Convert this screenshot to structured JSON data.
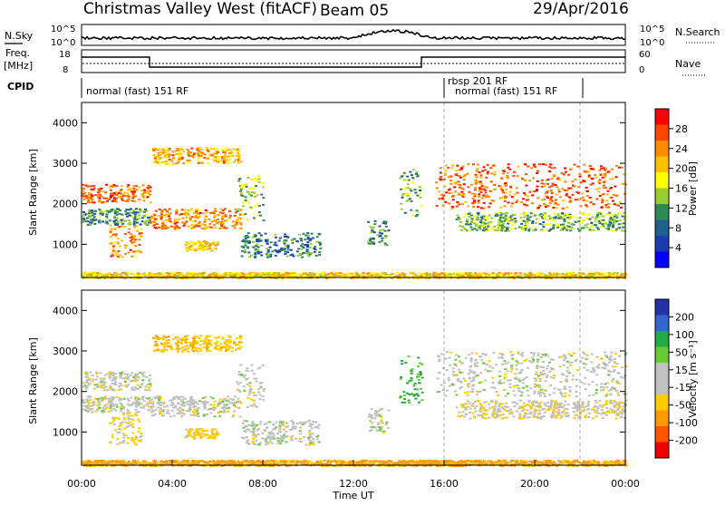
{
  "header": {
    "station": "Christmas Valley West (fitACF)",
    "beam": "Beam 05",
    "date": "29/Apr/2016"
  },
  "top_panels": {
    "nsky_label": "N.Sky",
    "nsky_ticks": [
      "10^5",
      "10^0"
    ],
    "nsearch_label": "N.Search",
    "nsearch_ticks": [
      "10^5",
      "10^0"
    ],
    "freq_label": "Freq.",
    "freq_unit": "[MHz]",
    "freq_ticks": [
      "18",
      "8"
    ],
    "nave_label": "Nave",
    "nave_ticks": [
      "60",
      "0"
    ],
    "cpid_label": "CPID",
    "cpid_segments": [
      "normal (fast) 151 RF",
      "rbsp 201 RF",
      "normal (fast) 151 RF"
    ]
  },
  "axes": {
    "ylabel": "Slant Range [km]",
    "xlabel": "Time UT",
    "y_ticks": [
      "4000",
      "3000",
      "2000",
      "1000"
    ],
    "x_ticks": [
      "00:00",
      "04:00",
      "08:00",
      "12:00",
      "16:00",
      "20:00",
      "00:00"
    ]
  },
  "power_colorbar": {
    "label": "Power [dB]",
    "ticks": [
      "28",
      "24",
      "20",
      "16",
      "12",
      "8",
      "4"
    ],
    "colors": [
      "#ff0000",
      "#ff4500",
      "#ff8c00",
      "#ffc000",
      "#ffff00",
      "#9acd32",
      "#2e8b57",
      "#1e6090",
      "#1a3cb0",
      "#0000ff"
    ]
  },
  "velocity_colorbar": {
    "label": "Velocity [m s⁻¹]",
    "ticks": [
      "200",
      "100",
      "50",
      "15",
      "-15",
      "-50",
      "-100",
      "-200"
    ],
    "colors": [
      "#2233aa",
      "#3366cc",
      "#22aa44",
      "#66cc33",
      "#c0c0c0",
      "#c0c0c0",
      "#ffcc00",
      "#ff9900",
      "#ff5500",
      "#ee0000"
    ]
  },
  "chart_data": {
    "type": "heatmap",
    "x_range_hours": [
      0,
      24
    ],
    "y_range_km": [
      180,
      4500
    ],
    "freq_steps": [
      {
        "start_h": 0,
        "end_h": 3,
        "value": "high"
      },
      {
        "start_h": 3,
        "end_h": 15,
        "value": "low"
      },
      {
        "start_h": 15,
        "end_h": 24,
        "value": "high"
      }
    ],
    "cpid_changes_h": [
      16,
      22
    ],
    "scatter_regions": [
      {
        "t0": 0.0,
        "t1": 3.0,
        "r0": 2050,
        "r1": 2500,
        "power": 26,
        "velocity": 0
      },
      {
        "t0": 0.0,
        "t1": 3.0,
        "r0": 1500,
        "r1": 1900,
        "power": 12,
        "velocity": 0
      },
      {
        "t0": 1.2,
        "t1": 2.6,
        "r0": 700,
        "r1": 1500,
        "power": 24,
        "velocity": -20
      },
      {
        "t0": 3.0,
        "t1": 7.0,
        "r0": 1400,
        "r1": 1900,
        "power": 24,
        "velocity": 0
      },
      {
        "t0": 3.1,
        "t1": 7.0,
        "r0": 3000,
        "r1": 3400,
        "power": 22,
        "velocity": -40
      },
      {
        "t0": 4.5,
        "t1": 6.0,
        "r0": 850,
        "r1": 1100,
        "power": 20,
        "velocity": -30
      },
      {
        "t0": 6.8,
        "t1": 8.0,
        "r0": 1600,
        "r1": 2700,
        "power": 16,
        "velocity": 0
      },
      {
        "t0": 7.0,
        "t1": 10.5,
        "r0": 700,
        "r1": 1300,
        "power": 10,
        "velocity": 0
      },
      {
        "t0": 12.6,
        "t1": 13.5,
        "r0": 1000,
        "r1": 1600,
        "power": 12,
        "velocity": 0
      },
      {
        "t0": 14.0,
        "t1": 15.0,
        "r0": 1700,
        "r1": 2900,
        "power": 14,
        "velocity": 40
      },
      {
        "t0": 15.6,
        "t1": 24.0,
        "r0": 1900,
        "r1": 3000,
        "power": 26,
        "velocity": 0
      },
      {
        "t0": 16.5,
        "t1": 24.0,
        "r0": 1350,
        "r1": 1800,
        "power": 14,
        "velocity": -10
      },
      {
        "t0": 0.0,
        "t1": 24.0,
        "r0": 180,
        "r1": 320,
        "power": 20,
        "velocity": -60
      }
    ]
  }
}
